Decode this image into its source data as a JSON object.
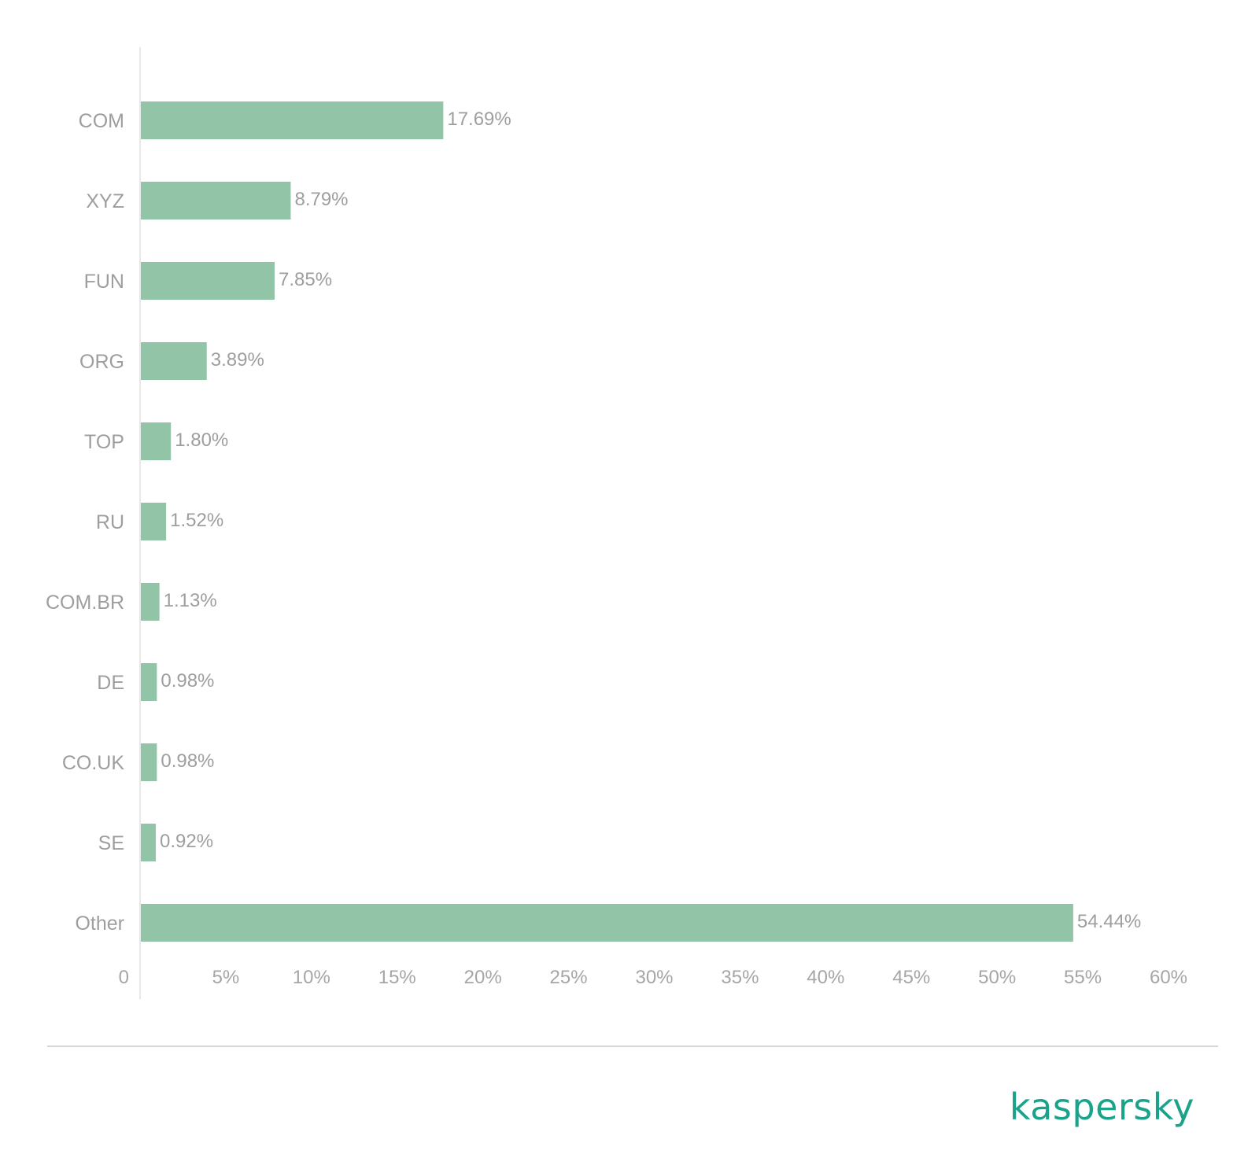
{
  "chart_data": {
    "type": "bar",
    "orientation": "horizontal",
    "categories": [
      "COM",
      "XYZ",
      "FUN",
      "ORG",
      "TOP",
      "RU",
      "COM.BR",
      "DE",
      "CO.UK",
      "SE",
      "Other"
    ],
    "values": [
      17.69,
      8.79,
      7.85,
      3.89,
      1.8,
      1.52,
      1.13,
      0.98,
      0.98,
      0.92,
      54.44
    ],
    "value_labels": [
      "17.69%",
      "8.79%",
      "7.85%",
      "3.89%",
      "1.80%",
      "1.52%",
      "1.13%",
      "0.98%",
      "0.98%",
      "0.92%",
      "54.44%"
    ],
    "x_ticks": [
      0,
      5,
      10,
      15,
      20,
      25,
      30,
      35,
      40,
      45,
      50,
      55,
      60
    ],
    "x_tick_labels": [
      "0",
      "5%",
      "10%",
      "15%",
      "20%",
      "25%",
      "30%",
      "35%",
      "40%",
      "45%",
      "50%",
      "55%",
      "60%"
    ],
    "xlim": [
      0,
      60
    ],
    "title": "",
    "xlabel": "",
    "ylabel": "",
    "grid": false,
    "legend": "none",
    "bar_color": "#92c4a8",
    "label_color": "#9e9e9e",
    "axis_color": "#e8e8e8"
  },
  "brand": {
    "name": "kaspersky",
    "color": "#1aa38a"
  }
}
